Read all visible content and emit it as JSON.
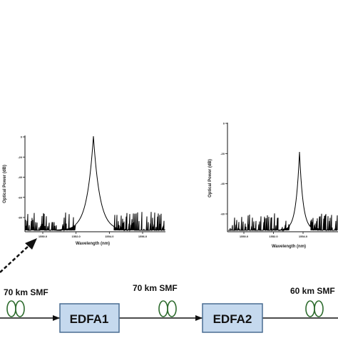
{
  "plot_left": {
    "ylabel": "Optical Power (dB)",
    "xlabel": "Wavelength (nm)",
    "xticks": [
      "1550.0",
      "1552.0",
      "1554.0",
      "1556.0"
    ],
    "yticks": [
      "0",
      "-20",
      "-40",
      "-60",
      "-80"
    ]
  },
  "plot_right": {
    "ylabel": "Optical Power (dB)",
    "xlabel": "Wavelength (nm)",
    "xticks": [
      "1550.0",
      "1552.0",
      "1554.0"
    ],
    "yticks": [
      "0",
      "-20",
      "-40",
      "-60"
    ]
  },
  "link": {
    "span1_label": "70 km SMF",
    "span2_label": "70 km SMF",
    "span3_label": "60 km SMF",
    "amp1_label": "EDFA1",
    "amp2_label": "EDFA2"
  },
  "colors": {
    "amp_fill": "#c5d9ee",
    "amp_border": "#4a6d92",
    "coil": "#2d6b2d",
    "line": "#111111"
  }
}
